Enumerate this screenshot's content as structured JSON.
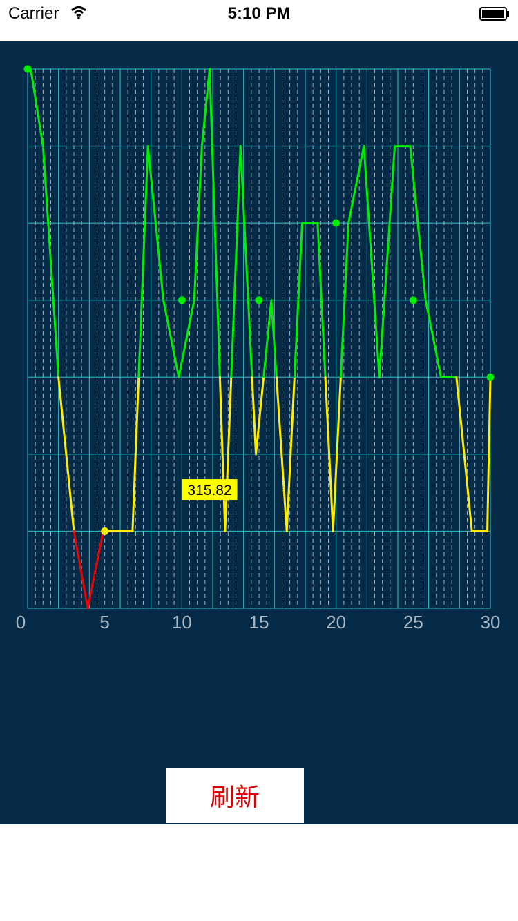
{
  "status_bar": {
    "carrier": "Carrier",
    "time": "5:10 PM"
  },
  "refresh_button": {
    "label": "刷新"
  },
  "colors": {
    "panel_bg": "#052b48",
    "grid": "#2fc3c9",
    "minor_grid": "#c9d3da",
    "tick_text": "#aab8c4",
    "above": "#00ee00",
    "middle": "#ffee00",
    "below": "#ee0000",
    "tooltip_bg": "#ffff00"
  },
  "chart_data": {
    "type": "line",
    "title": "",
    "xlabel": "",
    "ylabel": "",
    "xlim": [
      0,
      30
    ],
    "ylim": [
      0,
      7
    ],
    "x_ticks": [
      "0",
      "5",
      "10",
      "15",
      "20",
      "25",
      "30"
    ],
    "grid": true,
    "thresholds": [
      3,
      1
    ],
    "x": [
      0,
      0.2,
      1,
      2,
      3,
      3.9,
      4.9,
      5.8,
      6.8,
      7.8,
      8.8,
      9.8,
      10.8,
      11.3,
      11.8,
      12.8,
      13.8,
      14.8,
      15.8,
      16.8,
      17.8,
      18.8,
      19.8,
      20.8,
      21.8,
      22.8,
      23.8,
      24.8,
      25.8,
      26.8,
      27.8,
      28.8,
      29.8,
      30
    ],
    "y": [
      7,
      7,
      6,
      3,
      1,
      0,
      1,
      1,
      1,
      6,
      4,
      3,
      4,
      6,
      7,
      1,
      6,
      2,
      4,
      1,
      5,
      5,
      1,
      5,
      6,
      3,
      6,
      6,
      4,
      3,
      3,
      1,
      1,
      3
    ],
    "markers": [
      {
        "x": 0,
        "y": 7
      },
      {
        "x": 5,
        "y": 1
      },
      {
        "x": 10,
        "y": 4
      },
      {
        "x": 15,
        "y": 4
      },
      {
        "x": 20,
        "y": 5
      },
      {
        "x": 25,
        "y": 4
      },
      {
        "x": 30,
        "y": 3
      }
    ],
    "tooltip": {
      "text": "315.82",
      "x": 11.8,
      "y": 1.55
    }
  }
}
